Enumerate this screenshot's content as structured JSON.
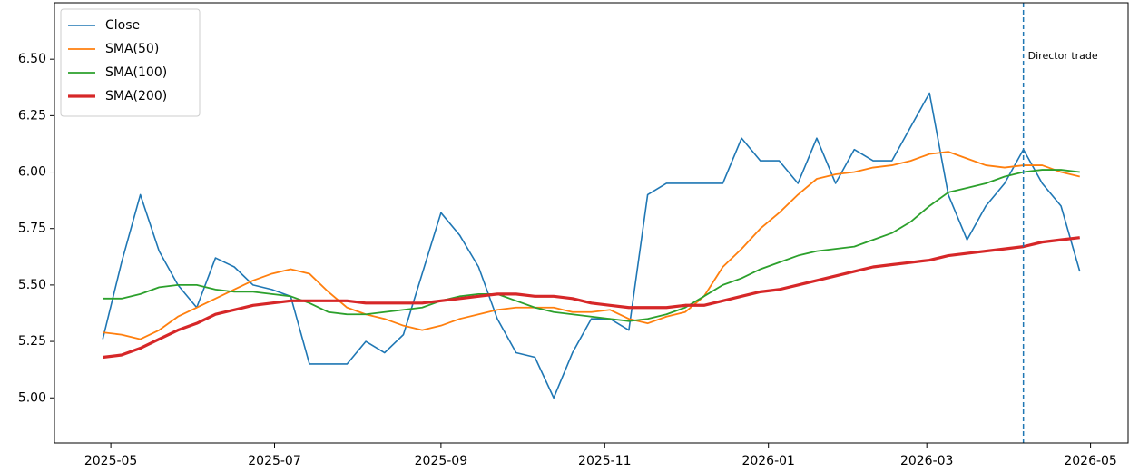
{
  "chart_data": {
    "type": "line",
    "x": [
      "2025-04-28",
      "2025-05-05",
      "2025-05-12",
      "2025-05-19",
      "2025-05-26",
      "2025-06-02",
      "2025-06-09",
      "2025-06-16",
      "2025-06-23",
      "2025-06-30",
      "2025-07-07",
      "2025-07-14",
      "2025-07-21",
      "2025-07-28",
      "2025-08-04",
      "2025-08-11",
      "2025-08-18",
      "2025-08-25",
      "2025-09-01",
      "2025-09-08",
      "2025-09-15",
      "2025-09-22",
      "2025-09-29",
      "2025-10-06",
      "2025-10-13",
      "2025-10-20",
      "2025-10-27",
      "2025-11-03",
      "2025-11-10",
      "2025-11-17",
      "2025-11-24",
      "2025-12-01",
      "2025-12-08",
      "2025-12-15",
      "2025-12-22",
      "2025-12-29",
      "2026-01-05",
      "2026-01-12",
      "2026-01-19",
      "2026-01-26",
      "2026-02-02",
      "2026-02-09",
      "2026-02-16",
      "2026-02-23",
      "2026-03-02",
      "2026-03-09",
      "2026-03-16",
      "2026-03-23",
      "2026-03-30",
      "2026-04-06",
      "2026-04-13",
      "2026-04-20",
      "2026-04-27"
    ],
    "series": [
      {
        "name": "Close",
        "color": "#1f77b4",
        "linewidth": 1.6,
        "values": [
          5.26,
          5.6,
          5.9,
          5.65,
          5.5,
          5.4,
          5.62,
          5.58,
          5.5,
          5.48,
          5.45,
          5.15,
          5.15,
          5.15,
          5.25,
          5.2,
          5.28,
          5.55,
          5.82,
          5.72,
          5.58,
          5.35,
          5.2,
          5.18,
          5.0,
          5.2,
          5.35,
          5.35,
          5.3,
          5.9,
          5.95,
          5.95,
          5.95,
          5.95,
          6.15,
          6.05,
          6.05,
          5.95,
          6.15,
          5.95,
          6.1,
          6.05,
          6.05,
          6.2,
          6.35,
          5.9,
          5.7,
          5.85,
          5.95,
          6.1,
          5.95,
          5.85,
          5.56
        ]
      },
      {
        "name": "SMA(50)",
        "color": "#ff7f0e",
        "linewidth": 1.8,
        "values": [
          5.29,
          5.28,
          5.26,
          5.3,
          5.36,
          5.4,
          5.44,
          5.48,
          5.52,
          5.55,
          5.57,
          5.55,
          5.47,
          5.4,
          5.37,
          5.35,
          5.32,
          5.3,
          5.32,
          5.35,
          5.37,
          5.39,
          5.4,
          5.4,
          5.4,
          5.38,
          5.38,
          5.39,
          5.35,
          5.33,
          5.36,
          5.38,
          5.45,
          5.58,
          5.66,
          5.75,
          5.82,
          5.9,
          5.97,
          5.99,
          6.0,
          6.02,
          6.03,
          6.05,
          6.08,
          6.09,
          6.06,
          6.03,
          6.02,
          6.03,
          6.03,
          6.0,
          5.98
        ]
      },
      {
        "name": "SMA(100)",
        "color": "#2ca02c",
        "linewidth": 1.8,
        "values": [
          5.44,
          5.44,
          5.46,
          5.49,
          5.5,
          5.5,
          5.48,
          5.47,
          5.47,
          5.46,
          5.45,
          5.42,
          5.38,
          5.37,
          5.37,
          5.38,
          5.39,
          5.4,
          5.43,
          5.45,
          5.46,
          5.46,
          5.43,
          5.4,
          5.38,
          5.37,
          5.36,
          5.35,
          5.34,
          5.35,
          5.37,
          5.4,
          5.45,
          5.5,
          5.53,
          5.57,
          5.6,
          5.63,
          5.65,
          5.66,
          5.67,
          5.7,
          5.73,
          5.78,
          5.85,
          5.91,
          5.93,
          5.95,
          5.98,
          6.0,
          6.01,
          6.01,
          6.0
        ]
      },
      {
        "name": "SMA(200)",
        "color": "#d62728",
        "linewidth": 3.2,
        "values": [
          5.18,
          5.19,
          5.22,
          5.26,
          5.3,
          5.33,
          5.37,
          5.39,
          5.41,
          5.42,
          5.43,
          5.43,
          5.43,
          5.43,
          5.42,
          5.42,
          5.42,
          5.42,
          5.43,
          5.44,
          5.45,
          5.46,
          5.46,
          5.45,
          5.45,
          5.44,
          5.42,
          5.41,
          5.4,
          5.4,
          5.4,
          5.41,
          5.41,
          5.43,
          5.45,
          5.47,
          5.48,
          5.5,
          5.52,
          5.54,
          5.56,
          5.58,
          5.59,
          5.6,
          5.61,
          5.63,
          5.64,
          5.65,
          5.66,
          5.67,
          5.69,
          5.7,
          5.71
        ]
      }
    ],
    "xlim": [
      "2025-04-10",
      "2026-05-15"
    ],
    "xticks": [
      {
        "value": "2025-05-01",
        "label": "2025-05"
      },
      {
        "value": "2025-07-01",
        "label": "2025-07"
      },
      {
        "value": "2025-09-01",
        "label": "2025-09"
      },
      {
        "value": "2025-11-01",
        "label": "2025-11"
      },
      {
        "value": "2026-01-01",
        "label": "2026-01"
      },
      {
        "value": "2026-03-01",
        "label": "2026-03"
      },
      {
        "value": "2026-05-01",
        "label": "2026-05"
      }
    ],
    "ylim": [
      4.8,
      6.75
    ],
    "yticks": [
      {
        "value": 5,
        "label": "5.00"
      },
      {
        "value": 5.25,
        "label": "5.25"
      },
      {
        "value": 5.5,
        "label": "5.50"
      },
      {
        "value": 5.75,
        "label": "5.75"
      },
      {
        "value": 6,
        "label": "6.00"
      },
      {
        "value": 6.25,
        "label": "6.25"
      },
      {
        "value": 6.5,
        "label": "6.50"
      }
    ],
    "annotations": [
      {
        "x": "2026-04-06",
        "text": "Director trade",
        "color": "#1f77b4"
      }
    ],
    "legend": "upper left",
    "grid": false
  }
}
